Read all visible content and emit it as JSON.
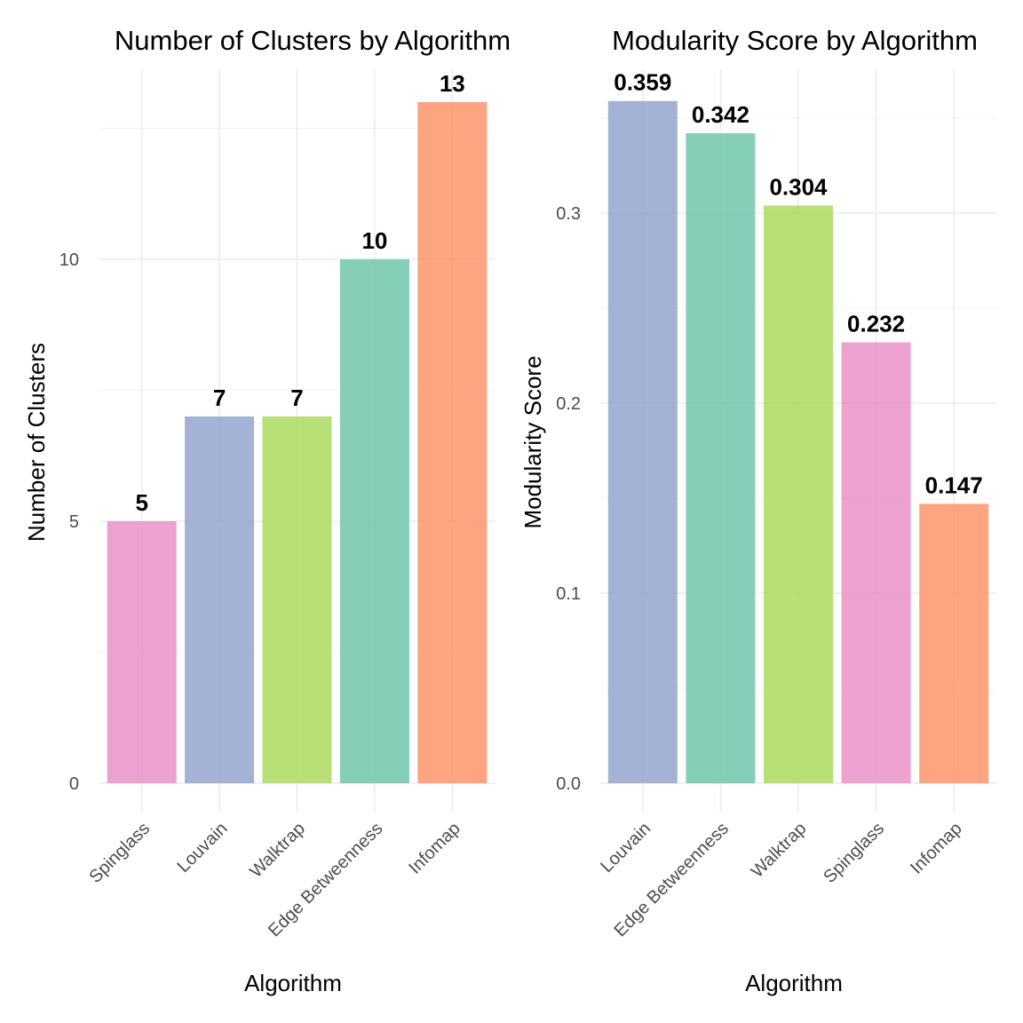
{
  "chart_data": [
    {
      "type": "bar",
      "title": "Number of Clusters by Algorithm",
      "xlabel": "Algorithm",
      "ylabel": "Number of Clusters",
      "categories": [
        "Spinglass",
        "Louvain",
        "Walktrap",
        "Edge Betweenness",
        "Infomap"
      ],
      "values": [
        5,
        7,
        7,
        10,
        13
      ],
      "value_labels": [
        "5",
        "7",
        "7",
        "10",
        "13"
      ],
      "colors": [
        "#E78AC3",
        "#8DA0CB",
        "#A6D854",
        "#66C2A5",
        "#FC8D62"
      ],
      "yticks": [
        0,
        5,
        10
      ],
      "ytick_labels": [
        "0",
        "5",
        "10"
      ],
      "ylim": [
        0,
        13.6
      ],
      "grid": true,
      "legend": "none"
    },
    {
      "type": "bar",
      "title": "Modularity Score by Algorithm",
      "xlabel": "Algorithm",
      "ylabel": "Modularity Score",
      "categories": [
        "Louvain",
        "Edge Betweenness",
        "Walktrap",
        "Spinglass",
        "Infomap"
      ],
      "values": [
        0.359,
        0.342,
        0.304,
        0.232,
        0.147
      ],
      "value_labels": [
        "0.359",
        "0.342",
        "0.304",
        "0.232",
        "0.147"
      ],
      "colors": [
        "#8DA0CB",
        "#66C2A5",
        "#A6D854",
        "#E78AC3",
        "#FC8D62"
      ],
      "yticks": [
        0.0,
        0.1,
        0.2,
        0.3
      ],
      "ytick_labels": [
        "0.0",
        "0.1",
        "0.2",
        "0.3"
      ],
      "ylim": [
        0,
        0.376
      ],
      "grid": true,
      "legend": "none"
    }
  ]
}
